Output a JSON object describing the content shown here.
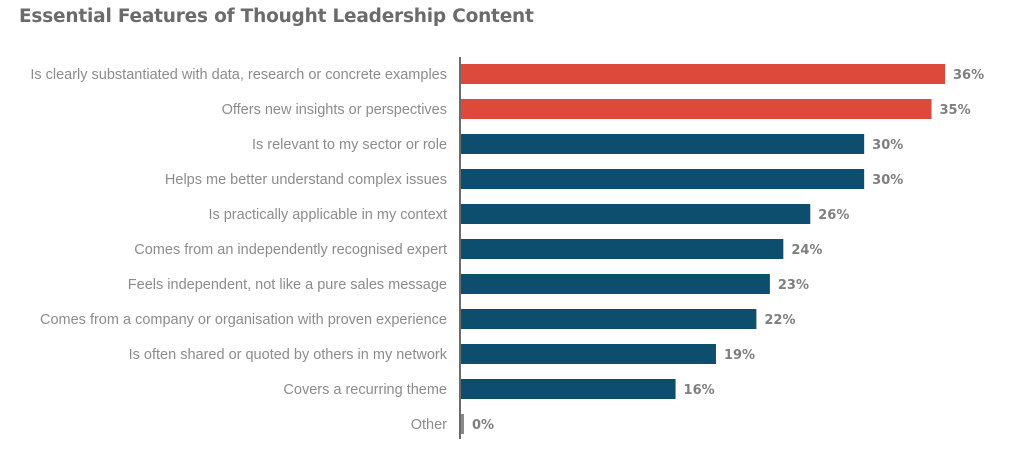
{
  "chart_data": {
    "type": "bar",
    "orientation": "horizontal",
    "title": "Essential Features of Thought Leadership Content",
    "xlabel": "",
    "ylabel": "",
    "xlim": [
      0,
      36
    ],
    "grid": false,
    "legend": "none",
    "value_format": "{v}%",
    "categories": [
      "Is clearly substantiated with data, research or concrete examples",
      "Offers new insights or perspectives",
      "Is relevant to my sector or role",
      "Helps me better understand complex issues",
      "Is practically applicable in my context",
      "Comes from an independently recognised expert",
      "Feels independent, not like a pure sales message",
      "Comes from a company or organisation with proven experience",
      "Is often shared or quoted by others in my network",
      "Covers a recurring theme",
      "Other"
    ],
    "values": [
      36,
      35,
      30,
      30,
      26,
      24,
      23,
      22,
      19,
      16,
      0
    ],
    "value_labels": [
      "36%",
      "35%",
      "30%",
      "30%",
      "26%",
      "24%",
      "23%",
      "22%",
      "19%",
      "16%",
      "0%"
    ],
    "highlight": [
      true,
      true,
      false,
      false,
      false,
      false,
      false,
      false,
      false,
      false,
      false
    ],
    "colors": {
      "highlight": "#dd4a3b",
      "default": "#0d4e6e",
      "zero": "#8a8a8a",
      "axis": "#6b6b6b"
    }
  }
}
